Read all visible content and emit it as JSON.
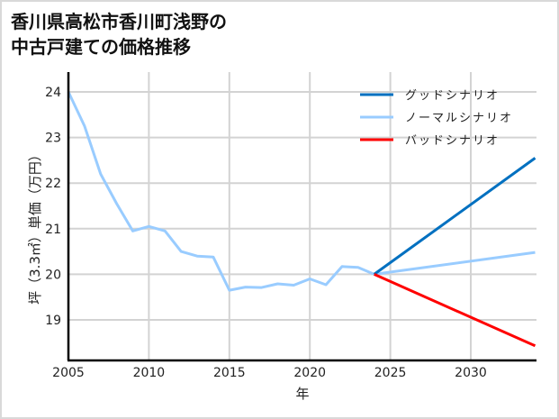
{
  "chart_data": {
    "type": "line",
    "title": "香川県高松市香川町浅野の中古戸建ての価格推移",
    "title_lines": [
      "香川県高松市香川町浅野の",
      "中古戸建ての価格推移"
    ],
    "xlabel": "年",
    "ylabel": "坪（3.3㎡）単価（万円）",
    "xlim": [
      2005,
      2034
    ],
    "ylim": [
      18.1,
      24.1
    ],
    "xticks": [
      2005,
      2010,
      2015,
      2020,
      2025,
      2030
    ],
    "yticks": [
      19,
      20,
      21,
      22,
      23,
      24
    ],
    "grid": true,
    "legend_position": "upper right",
    "series": [
      {
        "name": "ノーマルシナリオ",
        "color": "#99ccff",
        "x": [
          2005,
          2006,
          2007,
          2008,
          2009,
          2010,
          2011,
          2012,
          2013,
          2014,
          2015,
          2016,
          2017,
          2018,
          2019,
          2020,
          2021,
          2022,
          2023,
          2024,
          2034
        ],
        "values": [
          24.0,
          23.25,
          22.2,
          21.55,
          20.95,
          21.05,
          20.95,
          20.5,
          20.4,
          20.38,
          19.65,
          19.72,
          19.71,
          19.79,
          19.76,
          19.9,
          19.77,
          20.17,
          20.15,
          20.0,
          20.48
        ]
      },
      {
        "name": "グッドシナリオ",
        "color": "#0070c0",
        "x": [
          2024,
          2034
        ],
        "values": [
          20.0,
          22.55
        ]
      },
      {
        "name": "バッドシナリオ",
        "color": "#ff0000",
        "x": [
          2024,
          2034
        ],
        "values": [
          20.0,
          18.43
        ]
      }
    ],
    "legend": [
      {
        "label": "グッドシナリオ",
        "color": "#0070c0"
      },
      {
        "label": "ノーマルシナリオ",
        "color": "#99ccff"
      },
      {
        "label": "バッドシナリオ",
        "color": "#ff0000"
      }
    ]
  }
}
